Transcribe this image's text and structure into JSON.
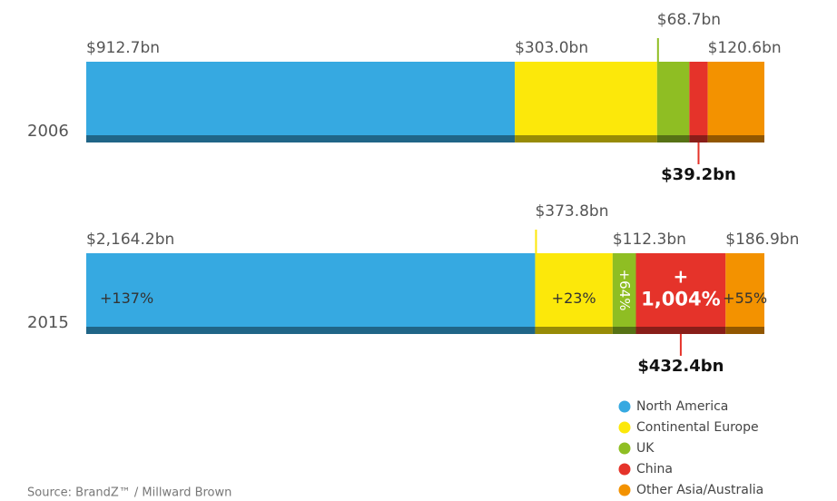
{
  "chart_data": {
    "type": "bar",
    "orientation": "horizontal",
    "stacked": true,
    "normalize": true,
    "categories": [
      "2006",
      "2015"
    ],
    "series": [
      {
        "name": "North America",
        "color": "#36a9e1",
        "values": [
          912.7,
          2164.2
        ],
        "value_labels": [
          "$912.7bn",
          "$2,164.2bn"
        ],
        "change_label": "+137%"
      },
      {
        "name": "Continental Europe",
        "color": "#fce80a",
        "values": [
          303.0,
          373.8
        ],
        "value_labels": [
          "$303.0bn",
          "$373.8bn"
        ],
        "change_label": "+23%"
      },
      {
        "name": "UK",
        "color": "#8fbe23",
        "values": [
          68.7,
          112.3
        ],
        "value_labels": [
          "$68.7bn",
          "$112.3bn"
        ],
        "change_label": "+64%"
      },
      {
        "name": "China",
        "color": "#e5332a",
        "values": [
          39.2,
          432.4
        ],
        "value_labels": [
          "$39.2bn",
          "$432.4bn"
        ],
        "change_label": "+1,004%"
      },
      {
        "name": "Other Asia/Australia",
        "color": "#f39200",
        "values": [
          120.6,
          186.9
        ],
        "value_labels": [
          "$120.6bn",
          "$186.9bn"
        ],
        "change_label": "+55%"
      }
    ],
    "source": "Source:  BrandZ™ / Millward Brown"
  }
}
